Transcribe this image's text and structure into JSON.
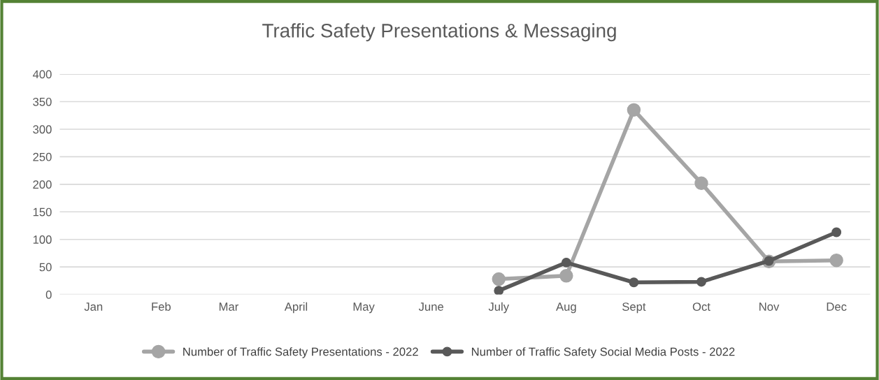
{
  "chart_data": {
    "type": "line",
    "title": "Traffic Safety Presentations & Messaging",
    "categories": [
      "Jan",
      "Feb",
      "Mar",
      "April",
      "May",
      "June",
      "July",
      "Aug",
      "Sept",
      "Oct",
      "Nov",
      "Dec"
    ],
    "series": [
      {
        "name": "Number of Traffic Safety Presentations - 2022",
        "color": "#a5a5a5",
        "values": [
          null,
          null,
          null,
          null,
          null,
          null,
          28,
          34,
          335,
          202,
          60,
          62
        ]
      },
      {
        "name": "Number of Traffic Safety Social Media Posts - 2022",
        "color": "#595959",
        "values": [
          null,
          null,
          null,
          null,
          null,
          null,
          7,
          58,
          22,
          23,
          61,
          113
        ]
      }
    ],
    "ylim": [
      0,
      400
    ],
    "yticks": [
      0,
      50,
      100,
      150,
      200,
      250,
      300,
      350,
      400
    ],
    "grid": "y",
    "legend": "bottom",
    "marker": "circle",
    "line_style": "solid"
  }
}
